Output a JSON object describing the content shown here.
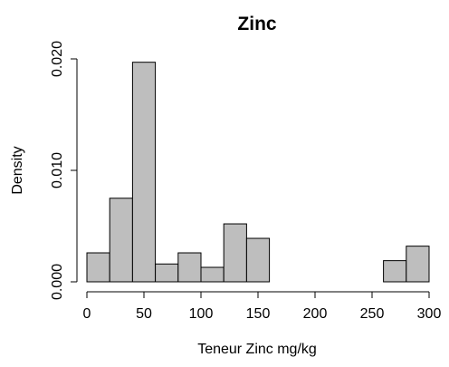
{
  "chart_data": {
    "type": "bar",
    "subtype": "histogram",
    "title": "Zinc",
    "xlabel": "Teneur Zinc mg/kg",
    "ylabel": "Density",
    "xlim": [
      0,
      300
    ],
    "ylim": [
      0,
      0.02
    ],
    "x_ticks": [
      0,
      50,
      100,
      150,
      200,
      250,
      300
    ],
    "y_ticks": [
      "0.000",
      "0.010",
      "0.020"
    ],
    "bin_edges": [
      0,
      20,
      40,
      60,
      80,
      100,
      120,
      140,
      160,
      180,
      200,
      220,
      240,
      260,
      280,
      300
    ],
    "values": [
      0.0026,
      0.0075,
      0.0197,
      0.0016,
      0.0026,
      0.0013,
      0.0052,
      0.0039,
      0,
      0,
      0,
      0,
      0,
      0.0019,
      0.0032
    ],
    "bar_fill": "#bebebe",
    "bar_stroke": "#000000",
    "grid": false,
    "legend": "none"
  }
}
